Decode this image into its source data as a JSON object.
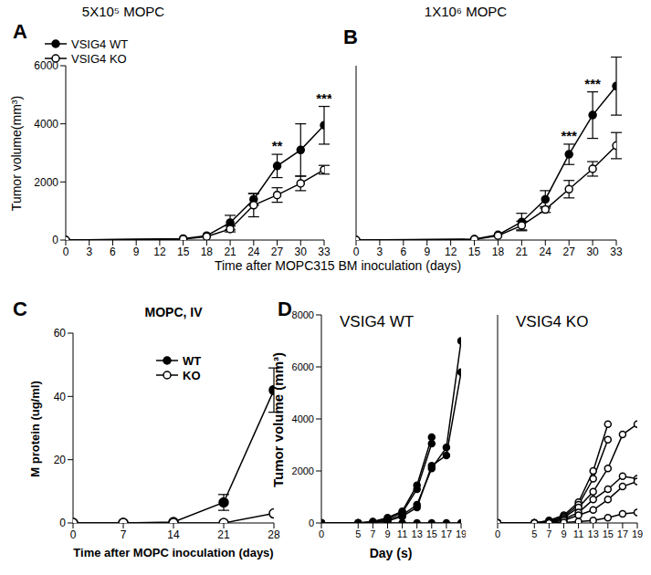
{
  "chart_data": [
    {
      "type": "line",
      "label": "A",
      "title": "5X10⁵ MOPC",
      "xlabel": "Time after MOPC315 BM inoculation (days)",
      "ylabel": "Tumor volume(mm³)",
      "x": [
        0,
        15,
        18,
        21,
        24,
        27,
        30,
        33
      ],
      "xlim": [
        0,
        33
      ],
      "xticks": [
        0,
        3,
        6,
        9,
        12,
        15,
        18,
        21,
        24,
        27,
        30,
        33
      ],
      "ylim": [
        0,
        6000
      ],
      "yticks": [
        0,
        2000,
        4000,
        6000
      ],
      "legend": "upper left",
      "series": [
        {
          "name": "VSIG4 WT",
          "color": "#000000",
          "marker": "filled_circle",
          "values": [
            0,
            50,
            150,
            600,
            1400,
            2550,
            3100,
            3950
          ],
          "errors": [
            null,
            null,
            null,
            250,
            200,
            400,
            900,
            650
          ]
        },
        {
          "name": "VSIG4 KO",
          "color": "#000000",
          "marker": "open_circle",
          "values": [
            0,
            30,
            120,
            380,
            1200,
            1550,
            1950,
            2420
          ],
          "errors": [
            null,
            null,
            null,
            100,
            400,
            250,
            250,
            150
          ]
        }
      ],
      "annotations": [
        {
          "x": 27,
          "text": "**"
        },
        {
          "x": 33,
          "text": "***"
        }
      ]
    },
    {
      "type": "line",
      "label": "B",
      "title": "1X10⁶ MOPC",
      "x": [
        0,
        15,
        18,
        21,
        24,
        27,
        30,
        33
      ],
      "xlim": [
        0,
        33
      ],
      "xticks": [
        0,
        3,
        6,
        9,
        12,
        15,
        18,
        21,
        24,
        27,
        30,
        33
      ],
      "ylim": [
        0,
        6000
      ],
      "yticks": [
        0,
        2000,
        4000,
        6000
      ],
      "tick_labels": "x",
      "series": [
        {
          "color": "#000000",
          "marker": "filled_circle",
          "values": [
            0,
            30,
            180,
            620,
            1400,
            2950,
            4300,
            5300
          ],
          "errors": [
            null,
            null,
            null,
            300,
            300,
            350,
            800,
            1000
          ]
        },
        {
          "color": "#000000",
          "marker": "open_circle",
          "values": [
            0,
            20,
            150,
            500,
            1050,
            1750,
            2450,
            3250
          ],
          "errors": [
            null,
            null,
            null,
            150,
            100,
            300,
            250,
            450
          ]
        }
      ],
      "annotations": [
        {
          "x": 27,
          "text": "***"
        },
        {
          "x": 30,
          "text": "***"
        },
        {
          "x": 33,
          "text": "***"
        }
      ]
    },
    {
      "type": "line",
      "label": "C",
      "title": "MOPC, IV",
      "xlabel": "Time after MOPC inoculation (days)",
      "ylabel": "M protein (ug/ml)",
      "x": [
        0,
        7,
        14,
        21,
        28
      ],
      "xlim": [
        0,
        28
      ],
      "xticks": [
        0,
        7,
        14,
        21,
        28
      ],
      "ylim": [
        0,
        60
      ],
      "yticks": [
        0,
        20,
        40,
        60
      ],
      "legend": "upper center",
      "series": [
        {
          "name": "WT",
          "color": "#000000",
          "marker": "filled_circle",
          "values": [
            0,
            0,
            0.3,
            6.5,
            42
          ],
          "errors": [
            null,
            null,
            null,
            2.5,
            7
          ]
        },
        {
          "name": "KO",
          "color": "#000000",
          "marker": "open_circle",
          "values": [
            0,
            0,
            0,
            0,
            3
          ],
          "errors": [
            null,
            null,
            null,
            null,
            null
          ]
        }
      ]
    },
    {
      "type": "line",
      "label": "D",
      "title": "VSIG4 WT",
      "xlabel": "Day (s)",
      "ylabel": "Tumor volume (mm³)",
      "x": [
        0,
        5,
        7,
        9,
        11,
        13,
        15,
        17,
        19
      ],
      "xlim": [
        0,
        19
      ],
      "xticks": [
        0,
        5,
        7,
        9,
        11,
        13,
        15,
        17,
        19
      ],
      "ylim": [
        0,
        8000
      ],
      "yticks": [
        0,
        2000,
        4000,
        6000,
        8000
      ],
      "series": [
        {
          "color": "#000000",
          "marker": "filled_circle",
          "values": [
            0,
            0,
            50,
            200,
            450,
            1450,
            3300,
            null,
            null
          ]
        },
        {
          "color": "#000000",
          "marker": "filled_circle",
          "values": [
            0,
            0,
            40,
            150,
            400,
            1300,
            3050,
            null,
            null
          ]
        },
        {
          "color": "#000000",
          "marker": "filled_circle",
          "values": [
            0,
            0,
            30,
            100,
            300,
            700,
            2100,
            2900,
            7000
          ]
        },
        {
          "color": "#000000",
          "marker": "filled_circle",
          "values": [
            0,
            0,
            20,
            80,
            250,
            600,
            2200,
            2600,
            5800
          ]
        },
        {
          "color": "#000000",
          "marker": "filled_circle",
          "values": [
            0,
            0,
            0,
            0,
            0,
            0,
            0,
            0,
            0
          ]
        }
      ]
    },
    {
      "type": "line",
      "title": "VSIG4 KO",
      "x": [
        0,
        5,
        7,
        9,
        11,
        13,
        15,
        17,
        19
      ],
      "xlim": [
        0,
        19
      ],
      "xticks": [
        0,
        5,
        7,
        9,
        11,
        13,
        15,
        17,
        19
      ],
      "ylim": [
        0,
        8000
      ],
      "yticks": [
        0,
        2000,
        4000,
        6000,
        8000
      ],
      "tick_labels": "x",
      "series": [
        {
          "color": "#000000",
          "marker": "open_circle",
          "values": [
            0,
            0,
            100,
            300,
            800,
            2000,
            3800,
            null,
            null
          ]
        },
        {
          "color": "#000000",
          "marker": "open_circle",
          "values": [
            0,
            0,
            80,
            250,
            700,
            1700,
            3200,
            null,
            null
          ]
        },
        {
          "color": "#000000",
          "marker": "open_circle",
          "values": [
            0,
            0,
            50,
            200,
            600,
            1200,
            2100,
            3400,
            3800
          ]
        },
        {
          "color": "#000000",
          "marker": "open_circle",
          "values": [
            0,
            0,
            30,
            150,
            400,
            900,
            1300,
            1800,
            1700
          ]
        },
        {
          "color": "#000000",
          "marker": "open_circle",
          "values": [
            0,
            0,
            20,
            100,
            300,
            500,
            900,
            1400,
            1600
          ]
        },
        {
          "color": "#000000",
          "marker": "open_circle",
          "values": [
            0,
            0,
            0,
            20,
            50,
            100,
            200,
            350,
            400
          ]
        }
      ]
    }
  ]
}
